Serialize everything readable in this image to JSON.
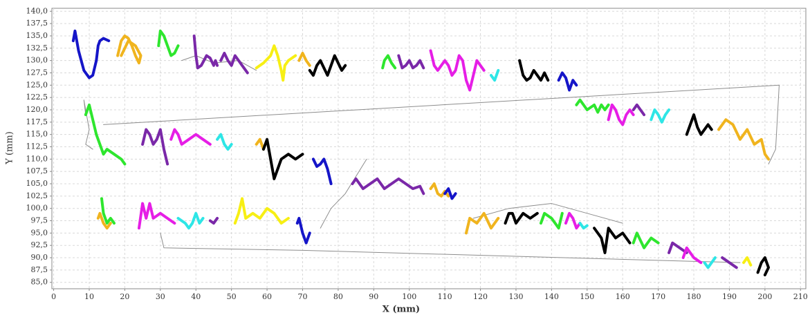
{
  "chart_data": {
    "type": "line",
    "xlabel": "X (mm)",
    "ylabel": "Y (mm)",
    "xlim": [
      -0.5,
      211.5
    ],
    "ylim": [
      83.7,
      140.6
    ],
    "grid": true,
    "xticks": [
      0,
      10,
      20,
      30,
      40,
      50,
      60,
      70,
      80,
      90,
      100,
      110,
      120,
      130,
      140,
      150,
      160,
      170,
      180,
      190,
      200,
      210
    ],
    "yticks": [
      {
        "value": 85,
        "label": "85,0"
      },
      {
        "value": 87.5,
        "label": "87,5"
      },
      {
        "value": 90,
        "label": "90,0"
      },
      {
        "value": 92.5,
        "label": "92,5"
      },
      {
        "value": 95,
        "label": "95,0"
      },
      {
        "value": 97.5,
        "label": "97,5"
      },
      {
        "value": 100,
        "label": "100,0"
      },
      {
        "value": 102.5,
        "label": "102,5"
      },
      {
        "value": 105,
        "label": "105,0"
      },
      {
        "value": 107.5,
        "label": "107,5"
      },
      {
        "value": 110,
        "label": "110,0"
      },
      {
        "value": 112.5,
        "label": "112,5"
      },
      {
        "value": 115,
        "label": "115,0"
      },
      {
        "value": 117.5,
        "label": "117,5"
      },
      {
        "value": 120,
        "label": "120,0"
      },
      {
        "value": 122.5,
        "label": "122,5"
      },
      {
        "value": 125,
        "label": "125,0"
      },
      {
        "value": 127.5,
        "label": "127,5"
      },
      {
        "value": 130,
        "label": "130,0"
      },
      {
        "value": 132.5,
        "label": "132,5"
      },
      {
        "value": 135,
        "label": "135,0"
      },
      {
        "value": 137.5,
        "label": "137,5"
      },
      {
        "value": 140,
        "label": "140,0"
      }
    ],
    "series": [
      {
        "color": "#8c8c8c",
        "line_width": 1,
        "x": [
          14,
          204,
          203,
          201,
          null,
          30,
          31,
          70,
          193,
          null,
          36,
          40,
          45,
          52,
          57,
          null,
          9,
          8.5,
          10,
          9,
          11,
          null,
          75,
          78,
          82,
          88,
          null,
          118,
          128,
          140,
          150,
          160
        ],
        "values": [
          117,
          125,
          112,
          109,
          null,
          95,
          92,
          91.5,
          89,
          null,
          130,
          131,
          129.5,
          130,
          128,
          null,
          119,
          122,
          116,
          113,
          112,
          null,
          96,
          100,
          103,
          110,
          null,
          98,
          100,
          101,
          99,
          97
        ]
      },
      {
        "color": "#1515c8",
        "line_width": 4,
        "x": [
          5.5,
          6,
          7,
          8.5,
          10,
          11,
          12,
          12.5,
          13,
          14,
          15.5
        ],
        "values": [
          134,
          136,
          132,
          128,
          126.5,
          127,
          130,
          133,
          134,
          134.5,
          134
        ]
      },
      {
        "color": "#f0b41e",
        "line_width": 4,
        "x": [
          18,
          19,
          20,
          21,
          22,
          23,
          24,
          24.5,
          23,
          21,
          19
        ],
        "values": [
          131,
          134,
          135,
          134.5,
          133,
          131,
          129.5,
          131,
          133,
          134,
          131
        ]
      },
      {
        "color": "#2ee62e",
        "line_width": 4,
        "x": [
          29.5,
          30,
          31,
          32,
          33,
          34,
          35
        ],
        "values": [
          133,
          136,
          135,
          133,
          131,
          131.5,
          133
        ]
      },
      {
        "color": "#7a28a8",
        "line_width": 4,
        "x": [
          39.5,
          40,
          40.5,
          41.5,
          43,
          44,
          45,
          45.5,
          46
        ],
        "values": [
          135,
          131,
          128.5,
          129,
          131,
          130.5,
          129,
          130,
          129
        ]
      },
      {
        "color": "#7a28a8",
        "line_width": 4,
        "x": [
          47,
          48,
          49,
          50,
          51,
          52,
          53,
          54.5
        ],
        "values": [
          130,
          131.5,
          130,
          129,
          131,
          130,
          129,
          127.5
        ]
      },
      {
        "color": "#f7ef14",
        "line_width": 4,
        "x": [
          57,
          59,
          61,
          62,
          63,
          64,
          64.5,
          65,
          66,
          68
        ],
        "values": [
          128.5,
          129.5,
          131,
          133,
          131,
          128,
          126,
          129,
          130,
          131
        ]
      },
      {
        "color": "#f0b41e",
        "line_width": 4,
        "x": [
          69,
          70,
          71,
          72
        ],
        "values": [
          130,
          131.5,
          130,
          129
        ]
      },
      {
        "color": "#000000",
        "line_width": 4,
        "x": [
          72,
          73,
          74,
          75,
          76,
          77,
          78,
          79,
          80,
          81,
          82
        ],
        "values": [
          128,
          127,
          129,
          130,
          128.5,
          127,
          129,
          131,
          129.5,
          128,
          129
        ]
      },
      {
        "color": "#2ee62e",
        "line_width": 4,
        "x": [
          92.5,
          93,
          94,
          95,
          96
        ],
        "values": [
          128.5,
          130,
          131,
          129.5,
          128.5
        ]
      },
      {
        "color": "#7a28a8",
        "line_width": 4,
        "x": [
          97,
          98,
          99,
          100,
          101,
          102,
          103,
          104
        ],
        "values": [
          131,
          128.5,
          129,
          130,
          128.5,
          129,
          130,
          128.5
        ]
      },
      {
        "color": "#e61ee6",
        "line_width": 4,
        "x": [
          106,
          107,
          108,
          110,
          111,
          112,
          113,
          114,
          115,
          116,
          117,
          118,
          119,
          120,
          121
        ],
        "values": [
          132,
          129,
          128,
          130,
          129,
          127,
          128,
          131,
          130,
          126,
          124,
          127,
          130,
          129,
          128
        ]
      },
      {
        "color": "#2ee6e6",
        "line_width": 4,
        "x": [
          123,
          124,
          125
        ],
        "values": [
          127,
          126,
          128
        ]
      },
      {
        "color": "#000000",
        "line_width": 4,
        "x": [
          131,
          132,
          133,
          134,
          135,
          136,
          137,
          138,
          139
        ],
        "values": [
          130,
          127,
          126,
          126.5,
          128,
          127,
          126,
          127.5,
          126
        ]
      },
      {
        "color": "#1515c8",
        "line_width": 4,
        "x": [
          142,
          143,
          144,
          145,
          146,
          147
        ],
        "values": [
          126,
          127.5,
          126.5,
          124,
          126,
          125
        ]
      },
      {
        "color": "#2ee62e",
        "line_width": 4,
        "x": [
          147,
          148,
          150,
          152,
          153,
          154,
          155,
          156
        ],
        "values": [
          121,
          122,
          120,
          121,
          119.5,
          121,
          120,
          121
        ]
      },
      {
        "color": "#e61ee6",
        "line_width": 4,
        "x": [
          156,
          157,
          158,
          159,
          160,
          161,
          162,
          163
        ],
        "values": [
          118,
          121,
          120,
          118,
          117,
          119,
          120,
          119
        ]
      },
      {
        "color": "#7a28a8",
        "line_width": 4,
        "x": [
          163,
          164,
          165,
          166
        ],
        "values": [
          120,
          121,
          120,
          119
        ]
      },
      {
        "color": "#2ee6e6",
        "line_width": 4,
        "x": [
          168,
          169,
          170,
          171,
          172,
          173
        ],
        "values": [
          118,
          120,
          119,
          117.5,
          119,
          120
        ]
      },
      {
        "color": "#000000",
        "line_width": 4,
        "x": [
          178,
          179,
          180,
          181,
          182,
          183,
          184,
          185
        ],
        "values": [
          115,
          117,
          119,
          116.5,
          115,
          116,
          117,
          116
        ]
      },
      {
        "color": "#f0b41e",
        "line_width": 4,
        "x": [
          187,
          189,
          191,
          193,
          195,
          197,
          199,
          200,
          201
        ],
        "values": [
          116,
          118,
          117,
          114,
          116,
          113,
          114,
          111,
          110
        ]
      },
      {
        "color": "#2ee62e",
        "line_width": 4,
        "x": [
          9,
          10,
          11,
          12,
          13,
          14,
          15,
          17,
          19,
          20
        ],
        "values": [
          119,
          121,
          118,
          115,
          113,
          111,
          112,
          111,
          110,
          109
        ]
      },
      {
        "color": "#7a28a8",
        "line_width": 4,
        "x": [
          25,
          26,
          27,
          28,
          29,
          30,
          31,
          32
        ],
        "values": [
          113,
          116,
          115,
          113,
          114,
          116,
          112,
          109
        ]
      },
      {
        "color": "#e61ee6",
        "line_width": 4,
        "x": [
          33,
          34,
          35,
          36,
          38,
          40,
          42,
          44
        ],
        "values": [
          114,
          116,
          115,
          113,
          114,
          115,
          114,
          113
        ]
      },
      {
        "color": "#2ee6e6",
        "line_width": 4,
        "x": [
          46,
          47,
          48,
          49,
          50
        ],
        "values": [
          114,
          115,
          113,
          112,
          113
        ]
      },
      {
        "color": "#f0b41e",
        "line_width": 4,
        "x": [
          57,
          58,
          59
        ],
        "values": [
          113,
          114,
          112
        ]
      },
      {
        "color": "#000000",
        "line_width": 4,
        "x": [
          59,
          60,
          61,
          62,
          64,
          66,
          68,
          70
        ],
        "values": [
          112,
          114,
          110,
          106,
          110,
          111,
          110,
          111
        ]
      },
      {
        "color": "#1515c8",
        "line_width": 4,
        "x": [
          73,
          74,
          75,
          76,
          77,
          78
        ],
        "values": [
          110,
          108.5,
          109,
          110,
          108,
          105
        ]
      },
      {
        "color": "#7a28a8",
        "line_width": 4,
        "x": [
          84,
          85,
          87,
          89,
          91,
          93,
          95,
          97,
          99,
          101,
          103,
          104
        ],
        "values": [
          105,
          106,
          104,
          105,
          106,
          104,
          105,
          106,
          105,
          104,
          104.5,
          103
        ]
      },
      {
        "color": "#f0b41e",
        "line_width": 4,
        "x": [
          106,
          107,
          108,
          109,
          110,
          111
        ],
        "values": [
          104,
          105,
          103,
          102.5,
          103.5,
          102.5
        ]
      },
      {
        "color": "#1515c8",
        "line_width": 4,
        "x": [
          110,
          111,
          112,
          113
        ],
        "values": [
          103,
          104,
          102,
          103
        ]
      },
      {
        "color": "#f0b41e",
        "line_width": 4,
        "x": [
          12.5,
          13,
          14,
          15,
          16
        ],
        "values": [
          98,
          99,
          97,
          96,
          97
        ]
      },
      {
        "color": "#2ee62e",
        "line_width": 4,
        "x": [
          13.5,
          14,
          15,
          16,
          17
        ],
        "values": [
          102,
          99,
          97,
          98,
          97
        ]
      },
      {
        "color": "#e61ee6",
        "line_width": 4,
        "x": [
          24,
          25,
          26,
          27,
          28,
          30,
          32,
          34
        ],
        "values": [
          96,
          101,
          98,
          101,
          98,
          99,
          98,
          97
        ]
      },
      {
        "color": "#2ee6e6",
        "line_width": 4,
        "x": [
          35,
          37,
          38,
          39,
          40,
          41,
          42
        ],
        "values": [
          98,
          97,
          96,
          97,
          99,
          97,
          98
        ]
      },
      {
        "color": "#7a28a8",
        "line_width": 4,
        "x": [
          44,
          45,
          46
        ],
        "values": [
          97.5,
          97,
          98
        ]
      },
      {
        "color": "#f7ef14",
        "line_width": 4,
        "x": [
          51,
          52,
          53,
          54,
          56,
          58,
          60,
          62,
          64,
          66
        ],
        "values": [
          97,
          99,
          102,
          98,
          99,
          98,
          100,
          99,
          97,
          98
        ]
      },
      {
        "color": "#1515c8",
        "line_width": 4,
        "x": [
          68.5,
          69,
          70,
          71,
          72
        ],
        "values": [
          97,
          98,
          95,
          93,
          95
        ]
      },
      {
        "color": "#f0b41e",
        "line_width": 4,
        "x": [
          116,
          117,
          119,
          121,
          123,
          125
        ],
        "values": [
          95,
          98,
          97,
          99,
          96,
          98
        ]
      },
      {
        "color": "#000000",
        "line_width": 4,
        "x": [
          127,
          128,
          129,
          130,
          132,
          134,
          136
        ],
        "values": [
          97,
          99,
          99,
          97,
          99,
          98,
          99
        ]
      },
      {
        "color": "#2ee62e",
        "line_width": 4,
        "x": [
          137,
          138,
          140,
          142,
          143
        ],
        "values": [
          97,
          99,
          98,
          96,
          99
        ]
      },
      {
        "color": "#e61ee6",
        "line_width": 4,
        "x": [
          144,
          145,
          146,
          147,
          148
        ],
        "values": [
          97,
          99,
          98,
          96,
          97
        ]
      },
      {
        "color": "#2ee6e6",
        "line_width": 4,
        "x": [
          148,
          149,
          150
        ],
        "values": [
          97,
          96,
          96.5
        ]
      },
      {
        "color": "#000000",
        "line_width": 4,
        "x": [
          152,
          154,
          155,
          156,
          158,
          160,
          162
        ],
        "values": [
          96,
          94,
          91,
          96,
          94,
          95,
          93
        ]
      },
      {
        "color": "#2ee62e",
        "line_width": 4,
        "x": [
          163,
          164,
          166,
          168,
          170
        ],
        "values": [
          93,
          95,
          92,
          94,
          93
        ]
      },
      {
        "color": "#7a28a8",
        "line_width": 4,
        "x": [
          173,
          174,
          176,
          178
        ],
        "values": [
          91,
          93,
          92,
          91
        ]
      },
      {
        "color": "#e61ee6",
        "line_width": 4,
        "x": [
          177,
          178,
          180,
          182
        ],
        "values": [
          90,
          92,
          90,
          89
        ]
      },
      {
        "color": "#2ee6e6",
        "line_width": 4,
        "x": [
          183,
          184,
          186
        ],
        "values": [
          89,
          88,
          90
        ]
      },
      {
        "color": "#7a28a8",
        "line_width": 4,
        "x": [
          188,
          190,
          192
        ],
        "values": [
          90,
          89,
          88
        ]
      },
      {
        "color": "#f7ef14",
        "line_width": 4,
        "x": [
          194,
          195,
          196
        ],
        "values": [
          89,
          90,
          88.5
        ]
      },
      {
        "color": "#000000",
        "line_width": 4,
        "x": [
          198,
          199,
          200,
          201,
          200
        ],
        "values": [
          87,
          89,
          90,
          88,
          86.5
        ]
      }
    ]
  }
}
